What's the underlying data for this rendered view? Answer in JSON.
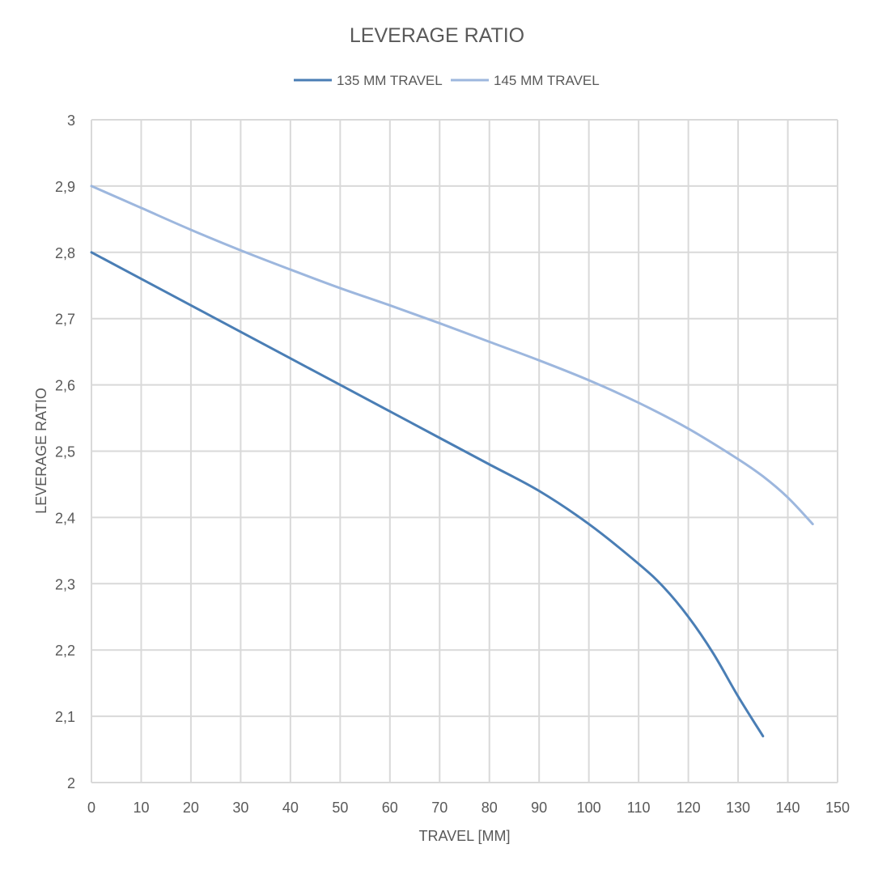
{
  "chart_data": {
    "type": "line",
    "title": "LEVERAGE RATIO",
    "xlabel": "TRAVEL [MM]",
    "ylabel": "LEVERAGE RATIO",
    "xlim": [
      0,
      150
    ],
    "ylim": [
      2,
      3
    ],
    "x_ticks": [
      "0",
      "10",
      "20",
      "30",
      "40",
      "50",
      "60",
      "70",
      "80",
      "90",
      "100",
      "110",
      "120",
      "130",
      "140",
      "150"
    ],
    "y_ticks": [
      "2",
      "2,1",
      "2,2",
      "2,3",
      "2,4",
      "2,5",
      "2,6",
      "2,7",
      "2,8",
      "2,9",
      "3"
    ],
    "grid": true,
    "legend_position": "top-center",
    "series": [
      {
        "name": "135 MM TRAVEL",
        "color": "#4a7eb5",
        "x": [
          0,
          10,
          20,
          30,
          40,
          50,
          60,
          70,
          80,
          90,
          100,
          110,
          115,
          120,
          125,
          130,
          135
        ],
        "y": [
          2.8,
          2.76,
          2.72,
          2.68,
          2.64,
          2.6,
          2.56,
          2.52,
          2.48,
          2.44,
          2.39,
          2.33,
          2.295,
          2.25,
          2.195,
          2.13,
          2.07
        ]
      },
      {
        "name": "145 MM TRAVEL",
        "color": "#9db7de",
        "x": [
          0,
          10,
          20,
          30,
          40,
          50,
          60,
          70,
          80,
          90,
          100,
          110,
          120,
          130,
          135,
          140,
          145
        ],
        "y": [
          2.9,
          2.867,
          2.834,
          2.803,
          2.774,
          2.746,
          2.72,
          2.693,
          2.665,
          2.637,
          2.607,
          2.573,
          2.534,
          2.488,
          2.462,
          2.43,
          2.39
        ]
      }
    ]
  }
}
